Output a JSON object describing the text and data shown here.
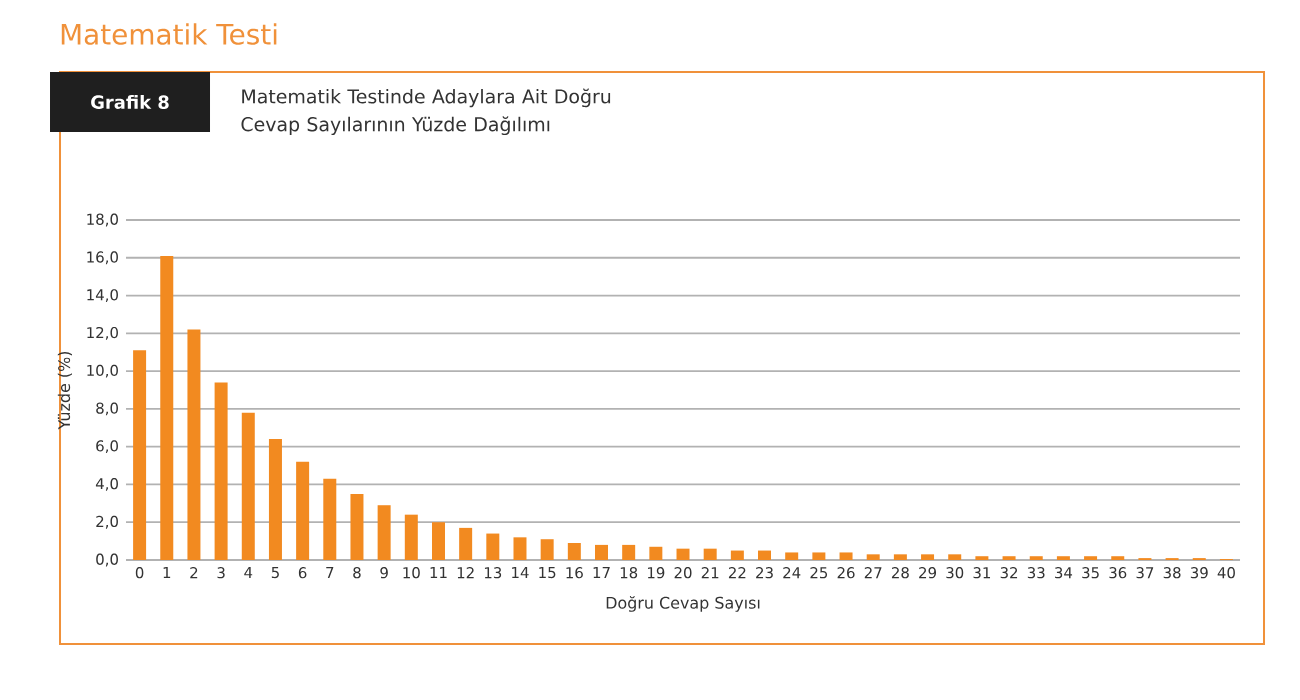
{
  "chart_data": {
    "type": "bar",
    "title": "Matematik Testi",
    "subtitle": "Matematik Testinde Adaylara Ait Doğru Cevap Sayılarının Yüzde Dağılımı",
    "annotations": [
      "Grafik 8"
    ],
    "xlabel": "Doğru Cevap Sayısı",
    "ylabel": "Yüzde (%)",
    "categories": [
      "0",
      "1",
      "2",
      "3",
      "4",
      "5",
      "6",
      "7",
      "8",
      "9",
      "10",
      "11",
      "12",
      "13",
      "14",
      "15",
      "16",
      "17",
      "18",
      "19",
      "20",
      "21",
      "22",
      "23",
      "24",
      "25",
      "26",
      "27",
      "28",
      "29",
      "30",
      "31",
      "32",
      "33",
      "34",
      "35",
      "36",
      "37",
      "38",
      "39",
      "40"
    ],
    "values": [
      11.1,
      16.1,
      12.2,
      9.4,
      7.8,
      6.4,
      5.2,
      4.3,
      3.5,
      2.9,
      2.4,
      2.0,
      1.7,
      1.4,
      1.2,
      1.1,
      0.9,
      0.8,
      0.8,
      0.7,
      0.6,
      0.6,
      0.5,
      0.5,
      0.4,
      0.4,
      0.4,
      0.3,
      0.3,
      0.3,
      0.3,
      0.2,
      0.2,
      0.2,
      0.2,
      0.2,
      0.2,
      0.1,
      0.1,
      0.1,
      0.05
    ],
    "color": "#f28a20",
    "ylim": [
      0,
      18
    ],
    "yticks": [
      {
        "value": 0,
        "label": "0,0"
      },
      {
        "value": 2,
        "label": "2,0"
      },
      {
        "value": 4,
        "label": "4,0"
      },
      {
        "value": 6,
        "label": "6,0"
      },
      {
        "value": 8,
        "label": "8,0"
      },
      {
        "value": 10,
        "label": "10,0"
      },
      {
        "value": 12,
        "label": "12,0"
      },
      {
        "value": 14,
        "label": "14,0"
      },
      {
        "value": 16,
        "label": "16,0"
      },
      {
        "value": 18,
        "label": "18,0"
      }
    ],
    "grid": "y"
  }
}
